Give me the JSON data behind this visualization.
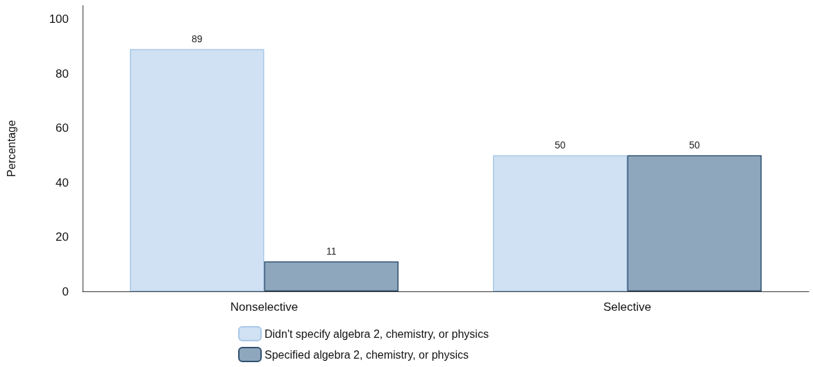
{
  "chart_data": {
    "type": "bar",
    "ylabel": "Percentage",
    "categories": [
      "Nonselective",
      "Selective"
    ],
    "series": [
      {
        "name": "Didn't specify algebra 2, chemistry, or physics",
        "color": "#cfe1f2",
        "values": [
          89,
          50
        ]
      },
      {
        "name": "Specified algebra 2, chemistry, or physics",
        "color": "#8fa7bd",
        "values": [
          11,
          50
        ]
      }
    ],
    "ylim": [
      0,
      105
    ],
    "yticks": [
      0,
      20,
      40,
      60,
      80,
      100
    ],
    "grid": false,
    "legend": "bottom",
    "data_labels": true
  }
}
